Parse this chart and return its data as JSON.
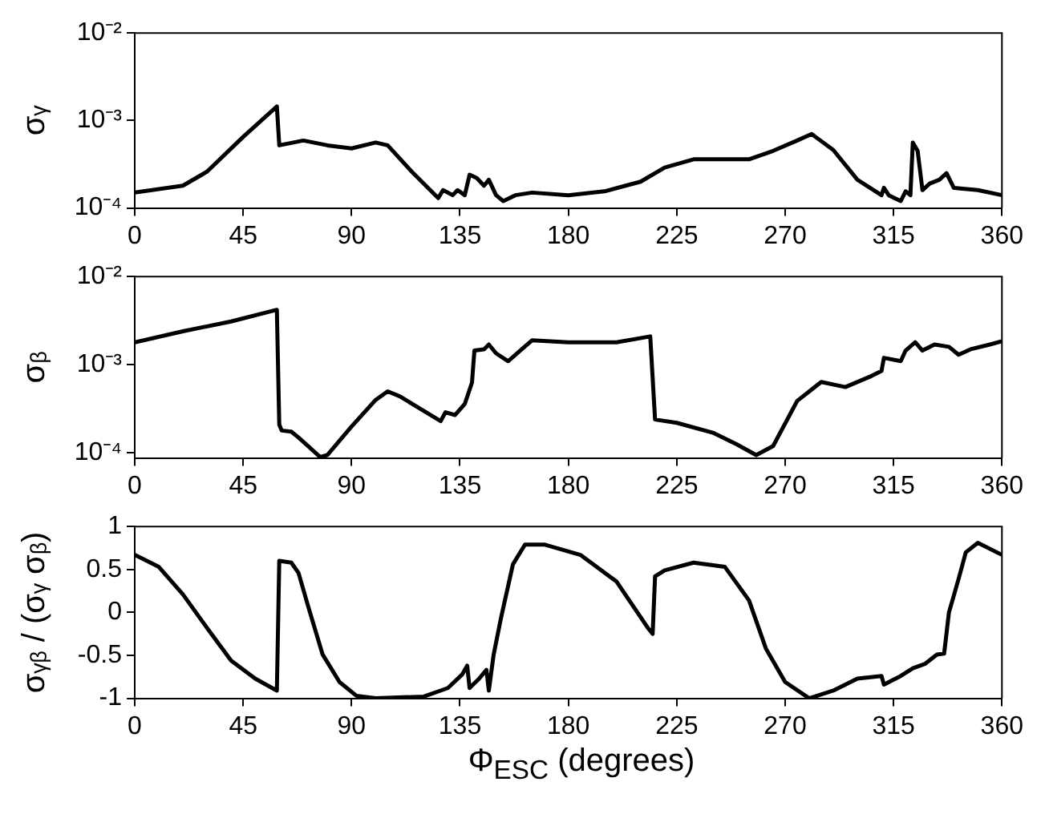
{
  "chart_data": [
    {
      "type": "line",
      "ylabel": "σᵧ",
      "log": "y",
      "legend": false,
      "grid": false,
      "xlim": [
        0,
        360
      ],
      "xticks": [
        0,
        45,
        90,
        135,
        180,
        225,
        270,
        315,
        360
      ],
      "ylim": [
        0.0001,
        0.01
      ],
      "yticks": [
        {
          "value": 0.0001,
          "label": "10⁻⁴"
        },
        {
          "value": 0.001,
          "label": "10⁻³"
        },
        {
          "value": 0.01,
          "label": "10⁻²"
        }
      ],
      "x": [
        0,
        20,
        30,
        45,
        59,
        60,
        70,
        80,
        90,
        100,
        105,
        115,
        126,
        128,
        132,
        134,
        137,
        139,
        142,
        145,
        147,
        150,
        153,
        158,
        165,
        180,
        195,
        210,
        220,
        232,
        240,
        255,
        265,
        275,
        281,
        290,
        300,
        310,
        311,
        313,
        318,
        320,
        322,
        323,
        325,
        327,
        330,
        334,
        337,
        340,
        350,
        360
      ],
      "series": [
        {
          "color": "#000000",
          "values": [
            0.00015,
            0.00018,
            0.00026,
            0.00065,
            0.00145,
            0.00052,
            0.00059,
            0.00052,
            0.00048,
            0.00056,
            0.00052,
            0.00026,
            0.00013,
            0.00016,
            0.00014,
            0.00016,
            0.00014,
            0.00024,
            0.00022,
            0.00018,
            0.00021,
            0.00014,
            0.00012,
            0.00014,
            0.00015,
            0.00014,
            0.000155,
            0.0002,
            0.00029,
            0.00036,
            0.00036,
            0.00036,
            0.00045,
            0.00059,
            0.0007,
            0.00046,
            0.00021,
            0.00014,
            0.00017,
            0.00014,
            0.00012,
            0.000155,
            0.00014,
            0.00056,
            0.00045,
            0.00016,
            0.00019,
            0.00021,
            0.00025,
            0.00017,
            0.00016,
            0.00014
          ]
        }
      ]
    },
    {
      "type": "line",
      "ylabel": "σᵦ",
      "log": "y",
      "legend": false,
      "grid": false,
      "xlim": [
        0,
        360
      ],
      "xticks": [
        0,
        45,
        90,
        135,
        180,
        225,
        270,
        315,
        360
      ],
      "ylim": [
        8.8e-05,
        0.01
      ],
      "yticks": [
        {
          "value": 0.0001,
          "label": "10⁻⁴"
        },
        {
          "value": 0.001,
          "label": "10⁻³"
        },
        {
          "value": 0.01,
          "label": "10⁻²"
        }
      ],
      "x": [
        0,
        20,
        40,
        59,
        60,
        61,
        65,
        68,
        72,
        77,
        80,
        90,
        100,
        105,
        110,
        120,
        127,
        129,
        133,
        137,
        140,
        141,
        145,
        147,
        150,
        155,
        160,
        165,
        180,
        200,
        214,
        216,
        225,
        240,
        250,
        258,
        265,
        275,
        285,
        295,
        305,
        310,
        311,
        318,
        320,
        324,
        327,
        332,
        338,
        342,
        347,
        355,
        360
      ],
      "series": [
        {
          "color": "#000000",
          "values": [
            0.0018,
            0.0024,
            0.0031,
            0.0042,
            0.00021,
            0.00018,
            0.000175,
            0.00015,
            0.00012,
            9e-05,
            9.5e-05,
            0.0002,
            0.0004,
            0.0005,
            0.00044,
            0.0003,
            0.00023,
            0.00029,
            0.00027,
            0.00036,
            0.00063,
            0.00145,
            0.0015,
            0.0017,
            0.00135,
            0.0011,
            0.00145,
            0.0019,
            0.0018,
            0.0018,
            0.0021,
            0.00024,
            0.00022,
            0.00017,
            0.000125,
            9.5e-05,
            0.00012,
            0.00039,
            0.00064,
            0.00056,
            0.00073,
            0.00085,
            0.0012,
            0.0011,
            0.00145,
            0.0018,
            0.00145,
            0.0017,
            0.0016,
            0.0013,
            0.0015,
            0.0017,
            0.00185
          ]
        }
      ]
    },
    {
      "type": "line",
      "ylabel": "σᵧᵦ / (σᵧ σᵦ)",
      "xlabel": "Φ$_{ESC}$ (degrees)",
      "legend": false,
      "grid": false,
      "xlim": [
        0,
        360
      ],
      "xticks": [
        0,
        45,
        90,
        135,
        180,
        225,
        270,
        315,
        360
      ],
      "ylim": [
        -1,
        1
      ],
      "yticks": [
        -1,
        -0.5,
        0,
        0.5,
        1
      ],
      "x": [
        0,
        10,
        20,
        30,
        40,
        50,
        59,
        60,
        65,
        68,
        72,
        78,
        85,
        92,
        100,
        120,
        130,
        136,
        138,
        139,
        143,
        146,
        147,
        149,
        152,
        157,
        162,
        170,
        185,
        200,
        213,
        215,
        216,
        220,
        232,
        245,
        255,
        262,
        270,
        280,
        290,
        300,
        310,
        311,
        318,
        323,
        328,
        333,
        336,
        338,
        342,
        345,
        350,
        360
      ],
      "series": [
        {
          "color": "#000000",
          "values": [
            0.67,
            0.53,
            0.21,
            -0.18,
            -0.56,
            -0.77,
            -0.91,
            0.6,
            0.58,
            0.46,
            0.07,
            -0.49,
            -0.81,
            -0.97,
            -1,
            -0.98,
            -0.88,
            -0.72,
            -0.62,
            -0.88,
            -0.77,
            -0.67,
            -0.91,
            -0.49,
            -0.07,
            0.56,
            0.79,
            0.79,
            0.67,
            0.36,
            -0.18,
            -0.25,
            0.42,
            0.49,
            0.58,
            0.53,
            0.14,
            -0.42,
            -0.81,
            -1,
            -0.91,
            -0.77,
            -0.74,
            -0.84,
            -0.74,
            -0.65,
            -0.6,
            -0.49,
            -0.48,
            0,
            0.39,
            0.7,
            0.81,
            0.67
          ]
        }
      ]
    }
  ]
}
